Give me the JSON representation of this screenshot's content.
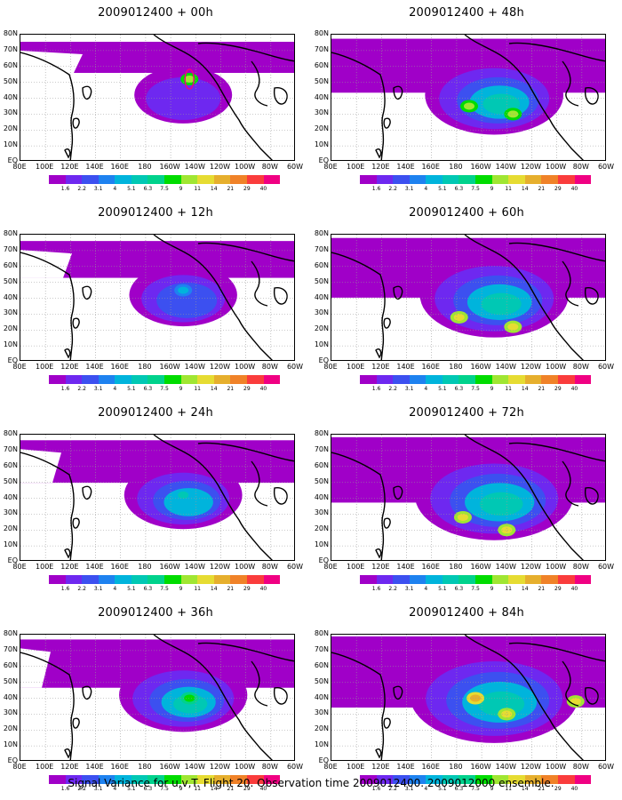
{
  "caption": "Signal Variance for u,v,T. Flight 20. Observation time 2009012400. 2009012000 ensemble.",
  "colorbar": {
    "labels": [
      "1.6",
      "2.2",
      "3.1",
      "4",
      "5.1",
      "6.3",
      "7.5",
      "9",
      "11",
      "14",
      "21",
      "29",
      "40"
    ],
    "colors": [
      "#a000c8",
      "#6e28f0",
      "#3c50f0",
      "#1e82f0",
      "#00b4dc",
      "#00c8b4",
      "#00d28c",
      "#00dc00",
      "#a0e632",
      "#e6dc32",
      "#e6af2d",
      "#f08228",
      "#fa3c3c",
      "#f00082"
    ]
  },
  "axes": {
    "y_ticks": [
      "EQ",
      "10N",
      "20N",
      "30N",
      "40N",
      "50N",
      "60N",
      "70N",
      "80N"
    ],
    "x_ticks": [
      "80E",
      "100E",
      "120E",
      "140E",
      "160E",
      "180",
      "160W",
      "140W",
      "120W",
      "100W",
      "80W",
      "60W"
    ]
  },
  "chart_data": [
    {
      "type": "heatmap",
      "title": "2009012400 + 00h",
      "lead_hours": 0,
      "xlim": [
        "80E",
        "60W"
      ],
      "ylim": [
        "EQ",
        "80N"
      ],
      "max_level": "9",
      "features": [
        {
          "lon": -145,
          "lat": 52,
          "level": 9,
          "note": "red/magenta contour over Gulf of Alaska"
        }
      ]
    },
    {
      "type": "heatmap",
      "title": "2009012400 + 12h",
      "lead_hours": 12,
      "xlim": [
        "80E",
        "60W"
      ],
      "ylim": [
        "EQ",
        "80N"
      ],
      "max_level": "4",
      "features": [
        {
          "lon": -150,
          "lat": 45,
          "level": 4
        }
      ]
    },
    {
      "type": "heatmap",
      "title": "2009012400 + 24h",
      "lead_hours": 24,
      "xlim": [
        "80E",
        "60W"
      ],
      "ylim": [
        "EQ",
        "80N"
      ],
      "max_level": "5.1",
      "features": [
        {
          "lon": -150,
          "lat": 42,
          "level": 5.1
        }
      ]
    },
    {
      "type": "heatmap",
      "title": "2009012400 + 36h",
      "lead_hours": 36,
      "xlim": [
        "80E",
        "60W"
      ],
      "ylim": [
        "EQ",
        "80N"
      ],
      "max_level": "7.5",
      "features": [
        {
          "lon": -145,
          "lat": 40,
          "level": 7.5
        }
      ]
    },
    {
      "type": "heatmap",
      "title": "2009012400 + 48h",
      "lead_hours": 48,
      "xlim": [
        "80E",
        "60W"
      ],
      "ylim": [
        "EQ",
        "80N"
      ],
      "max_level": "9",
      "features": [
        {
          "lon": -170,
          "lat": 35,
          "level": 9
        },
        {
          "lon": -135,
          "lat": 30,
          "level": 9
        }
      ]
    },
    {
      "type": "heatmap",
      "title": "2009012400 + 60h",
      "lead_hours": 60,
      "xlim": [
        "80E",
        "60W"
      ],
      "ylim": [
        "EQ",
        "80N"
      ],
      "max_level": "11",
      "features": [
        {
          "lon": -178,
          "lat": 28,
          "level": 11
        },
        {
          "lon": -135,
          "lat": 22,
          "level": 11
        }
      ]
    },
    {
      "type": "heatmap",
      "title": "2009012400 + 72h",
      "lead_hours": 72,
      "xlim": [
        "80E",
        "60W"
      ],
      "ylim": [
        "EQ",
        "80N"
      ],
      "max_level": "11",
      "features": [
        {
          "lon": -175,
          "lat": 28,
          "level": 11
        },
        {
          "lon": -140,
          "lat": 20,
          "level": 11
        }
      ]
    },
    {
      "type": "heatmap",
      "title": "2009012400 + 84h",
      "lead_hours": 84,
      "xlim": [
        "80E",
        "60W"
      ],
      "ylim": [
        "EQ",
        "80N"
      ],
      "max_level": "14",
      "features": [
        {
          "lon": -165,
          "lat": 40,
          "level": 14
        },
        {
          "lon": -140,
          "lat": 30,
          "level": 11
        },
        {
          "lon": -85,
          "lat": 38,
          "level": 11
        }
      ]
    }
  ]
}
